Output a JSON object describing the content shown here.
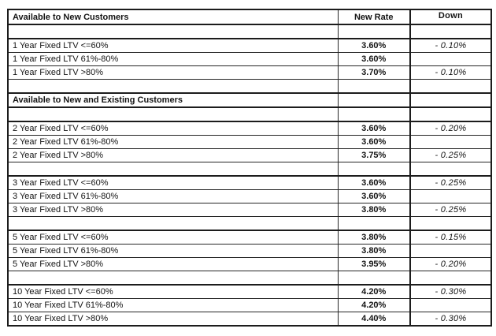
{
  "page": {
    "background": "#ffffff",
    "border_color": "#1c1c1c"
  },
  "table": {
    "columns": [
      "Available to New Customers",
      "New Rate",
      "Down"
    ],
    "rows": [
      {
        "label": "Available to New Customers",
        "rate": "New Rate",
        "down": "Down"
      },
      {
        "label": "",
        "rate": "",
        "down": ""
      },
      {
        "label": "1 Year Fixed LTV <=60%",
        "rate": "3.60%",
        "down": "- 0.10%"
      },
      {
        "label": "1 Year Fixed LTV 61%-80%",
        "rate": "3.60%",
        "down": ""
      },
      {
        "label": "1 Year Fixed LTV >80%",
        "rate": "3.70%",
        "down": "- 0.10%"
      },
      {
        "label": "",
        "rate": "",
        "down": ""
      },
      {
        "label": "Available to New and Existing Customers",
        "rate": "",
        "down": ""
      },
      {
        "label": "",
        "rate": "",
        "down": ""
      },
      {
        "label": "2 Year Fixed LTV <=60%",
        "rate": "3.60%",
        "down": "- 0.20%"
      },
      {
        "label": "2 Year Fixed LTV 61%-80%",
        "rate": "3.60%",
        "down": ""
      },
      {
        "label": "2 Year Fixed LTV >80%",
        "rate": "3.75%",
        "down": "- 0.25%"
      },
      {
        "label": "",
        "rate": "",
        "down": ""
      },
      {
        "label": "3 Year Fixed LTV <=60%",
        "rate": "3.60%",
        "down": "- 0.25%"
      },
      {
        "label": "3 Year Fixed LTV 61%-80%",
        "rate": "3.60%",
        "down": ""
      },
      {
        "label": "3 Year Fixed LTV >80%",
        "rate": "3.80%",
        "down": "- 0.25%"
      },
      {
        "label": "",
        "rate": "",
        "down": ""
      },
      {
        "label": "5 Year Fixed LTV <=60%",
        "rate": "3.80%",
        "down": "- 0.15%"
      },
      {
        "label": "5 Year Fixed LTV 61%-80%",
        "rate": "3.80%",
        "down": ""
      },
      {
        "label": "5 Year Fixed LTV >80%",
        "rate": "3.95%",
        "down": "- 0.20%"
      },
      {
        "label": "",
        "rate": "",
        "down": ""
      },
      {
        "label": "10 Year Fixed LTV <=60%",
        "rate": "4.20%",
        "down": "- 0.30%"
      },
      {
        "label": "10 Year Fixed LTV 61%-80%",
        "rate": "4.20%",
        "down": ""
      },
      {
        "label": "10 Year Fixed LTV >80%",
        "rate": "4.40%",
        "down": "- 0.30%"
      }
    ]
  }
}
